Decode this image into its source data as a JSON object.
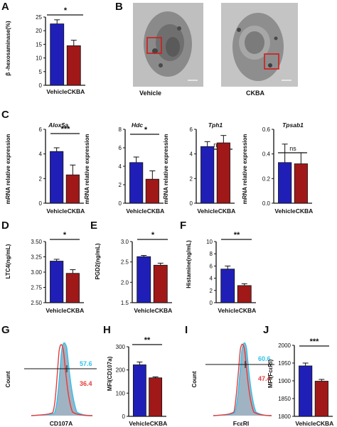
{
  "colors": {
    "vehicle": "#1f1fb8",
    "ckba": "#a01818",
    "flow_blue": "#2fc2ec",
    "flow_red": "#e63a3a",
    "flow_fill": "#8fa6b8"
  },
  "panels": {
    "A": {
      "letter": "A",
      "ylabel": "β -hexosaminase(%)",
      "sig": "*"
    },
    "B": {
      "letter": "B",
      "images": [
        "Vehicle",
        "CKBA"
      ]
    },
    "C": {
      "letter": "C",
      "ylabel": "mRNA relative expression",
      "genes": [
        {
          "name": "Alox5a",
          "sig": "***"
        },
        {
          "name": "Hdc",
          "sig": "*"
        },
        {
          "name": "Tph1",
          "sig": "ns"
        },
        {
          "name": "Tpsab1",
          "sig": "ns"
        }
      ]
    },
    "D": {
      "letter": "D",
      "ylabel": "LTC4(ng/mL)",
      "sig": "*"
    },
    "E": {
      "letter": "E",
      "ylabel": "PGD2(ng/mL)",
      "sig": "*"
    },
    "F": {
      "letter": "F",
      "ylabel": "Histamine(ng/mL)",
      "sig": "**"
    },
    "G": {
      "letter": "G",
      "ylabel": "Count",
      "xlabel": "CD107A",
      "pct_blue": "57.6",
      "pct_red": "36.4"
    },
    "H": {
      "letter": "H",
      "ylabel": "MFI(CD107a)",
      "sig": "**"
    },
    "I": {
      "letter": "I",
      "ylabel": "Count",
      "xlabel": "FcεRI",
      "pct_blue": "60.6",
      "pct_red": "47.4"
    },
    "J": {
      "letter": "J",
      "ylabel": "MFI(FcεRI)",
      "sig": "***"
    }
  },
  "chart_data": [
    {
      "panel": "A",
      "type": "bar",
      "categories": [
        "Vehicle",
        "CKBA"
      ],
      "values": [
        22.5,
        14.5
      ],
      "errors": [
        1.5,
        2.0
      ],
      "ylabel": "β -hexosaminase(%)",
      "ylim": [
        0,
        25
      ],
      "yticks": [
        "0",
        "5",
        "10",
        "15",
        "20",
        "25"
      ]
    },
    {
      "panel": "C1",
      "type": "bar",
      "title": "Alox5a",
      "categories": [
        "Vehicle",
        "CKBA"
      ],
      "values": [
        4.2,
        2.3
      ],
      "errors": [
        0.3,
        0.8
      ],
      "ylabel": "mRNA relative expression",
      "ylim": [
        0,
        6
      ],
      "yticks": [
        "0",
        "2",
        "4",
        "6"
      ]
    },
    {
      "panel": "C2",
      "type": "bar",
      "title": "Hdc",
      "categories": [
        "Vehicle",
        "CKBA"
      ],
      "values": [
        4.4,
        2.6
      ],
      "errors": [
        0.6,
        0.9
      ],
      "ylabel": "mRNA relative expression",
      "ylim": [
        0,
        8
      ],
      "yticks": [
        "0",
        "2",
        "4",
        "6",
        "8"
      ]
    },
    {
      "panel": "C3",
      "type": "bar",
      "title": "Tph1",
      "categories": [
        "Vehicle",
        "CKBA"
      ],
      "values": [
        4.6,
        4.9
      ],
      "errors": [
        0.4,
        0.6
      ],
      "ylabel": "mRNA relative expression",
      "ylim": [
        0,
        6
      ],
      "yticks": [
        "0",
        "2",
        "4",
        "6"
      ]
    },
    {
      "panel": "C4",
      "type": "bar",
      "title": "Tpsab1",
      "categories": [
        "Vehicle",
        "CKBA"
      ],
      "values": [
        0.33,
        0.32
      ],
      "errors": [
        0.15,
        0.09
      ],
      "ylabel": "mRNA relative expression",
      "ylim": [
        0,
        0.6
      ],
      "yticks": [
        "0.0",
        "0.2",
        "0.4",
        "0.6"
      ]
    },
    {
      "panel": "D",
      "type": "bar",
      "categories": [
        "Vehicle",
        "CKBA"
      ],
      "values": [
        3.18,
        2.98
      ],
      "errors": [
        0.03,
        0.06
      ],
      "ylabel": "LTC4(ng/mL)",
      "ylim": [
        2.5,
        3.5
      ],
      "yticks": [
        "2.50",
        "2.75",
        "3.00",
        "3.25",
        "3.50"
      ]
    },
    {
      "panel": "E",
      "type": "bar",
      "categories": [
        "Vehicle",
        "CKBA"
      ],
      "values": [
        2.63,
        2.42
      ],
      "errors": [
        0.03,
        0.05
      ],
      "ylabel": "PGD2(ng/mL)",
      "ylim": [
        1.5,
        3.0
      ],
      "yticks": [
        "1.5",
        "2.0",
        "2.5",
        "3.0"
      ]
    },
    {
      "panel": "F",
      "type": "bar",
      "categories": [
        "Vehicle",
        "CKBA"
      ],
      "values": [
        5.5,
        2.8
      ],
      "errors": [
        0.5,
        0.3
      ],
      "ylabel": "Histamine(ng/mL)",
      "ylim": [
        0,
        10
      ],
      "yticks": [
        "0",
        "2",
        "4",
        "6",
        "8",
        "10"
      ]
    },
    {
      "panel": "H",
      "type": "bar",
      "categories": [
        "Vehicle",
        "CKBA"
      ],
      "values": [
        222,
        166
      ],
      "errors": [
        12,
        4
      ],
      "ylabel": "MFI(CD107a)",
      "ylim": [
        0,
        300
      ],
      "yticks": [
        "0",
        "100",
        "200",
        "300"
      ]
    },
    {
      "panel": "J",
      "type": "bar",
      "categories": [
        "Vehicle",
        "CKBA"
      ],
      "values": [
        1942,
        1899
      ],
      "errors": [
        8,
        5
      ],
      "ylabel": "MFI(FcεRI)",
      "ylim": [
        1800,
        2000
      ],
      "yticks": [
        "1800",
        "1850",
        "1900",
        "1950",
        "2000"
      ]
    }
  ]
}
